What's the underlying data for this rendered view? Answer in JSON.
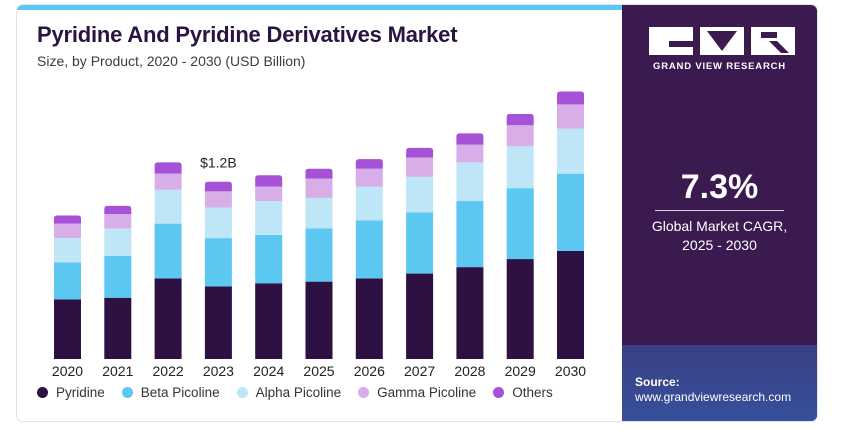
{
  "header": {
    "title": "Pyridine And Pyridine Derivatives Market",
    "subtitle": "Size, by Product, 2020 - 2030 (USD Billion)"
  },
  "side_panel": {
    "brand": "GRAND VIEW RESEARCH",
    "cagr_value": "7.3%",
    "cagr_label_line1": "Global Market CAGR,",
    "cagr_label_line2": "2025 - 2030",
    "source_label": "Source:",
    "source_url": "www.grandviewresearch.com"
  },
  "colors": {
    "Pyridine": "#2d1142",
    "Beta Picoline": "#5cc8f2",
    "Alpha Picoline": "#bfe6f7",
    "Gamma Picoline": "#d7aee8",
    "Others": "#a552d6",
    "panel": "#3a1a4f",
    "accent": "#5bc8f0"
  },
  "legend": [
    "Pyridine",
    "Beta Picoline",
    "Alpha Picoline",
    "Gamma Picoline",
    "Others"
  ],
  "chart_data": {
    "type": "bar",
    "stacked": true,
    "categories": [
      "2020",
      "2021",
      "2022",
      "2023",
      "2024",
      "2025",
      "2026",
      "2027",
      "2028",
      "2029",
      "2030"
    ],
    "series": [
      {
        "name": "Pyridine",
        "values": [
          0.37,
          0.38,
          0.5,
          0.45,
          0.47,
          0.48,
          0.5,
          0.53,
          0.57,
          0.62,
          0.67
        ]
      },
      {
        "name": "Beta Picoline",
        "values": [
          0.23,
          0.26,
          0.34,
          0.3,
          0.3,
          0.33,
          0.36,
          0.38,
          0.41,
          0.44,
          0.48
        ]
      },
      {
        "name": "Alpha Picoline",
        "values": [
          0.15,
          0.17,
          0.21,
          0.19,
          0.21,
          0.19,
          0.21,
          0.22,
          0.24,
          0.26,
          0.28
        ]
      },
      {
        "name": "Gamma Picoline",
        "values": [
          0.09,
          0.09,
          0.1,
          0.1,
          0.09,
          0.12,
          0.11,
          0.12,
          0.11,
          0.13,
          0.15
        ]
      },
      {
        "name": "Others",
        "values": [
          0.05,
          0.05,
          0.07,
          0.06,
          0.07,
          0.06,
          0.06,
          0.06,
          0.07,
          0.07,
          0.08
        ]
      }
    ],
    "annotations": [
      {
        "category": "2023",
        "text": "$1.2B"
      }
    ],
    "ylim": [
      0,
      1.7
    ],
    "grid": false,
    "legend_position": "bottom"
  }
}
